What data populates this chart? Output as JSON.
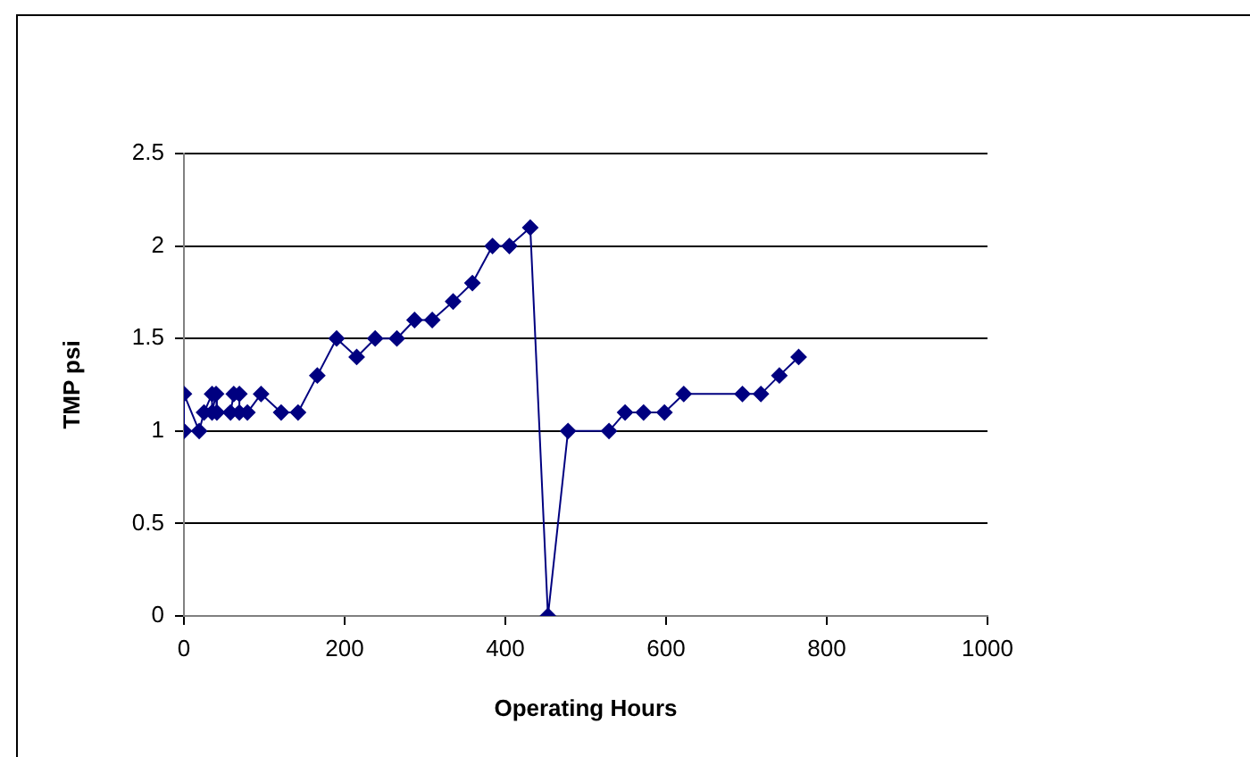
{
  "chart_data": {
    "type": "line",
    "xlabel": "Operating Hours",
    "ylabel": "TMP psi",
    "x": [
      0,
      0,
      19,
      25,
      35,
      35,
      40,
      41,
      58,
      62,
      69,
      69,
      79,
      96,
      121,
      142,
      166,
      190,
      215,
      238,
      265,
      287,
      309,
      335,
      359,
      384,
      405,
      431,
      453,
      478,
      529,
      549,
      572,
      598,
      622,
      695,
      718,
      741,
      765
    ],
    "series": [
      {
        "color": "#000080",
        "values": [
          1.0,
          1.2,
          1.0,
          1.1,
          1.2,
          1.1,
          1.2,
          1.1,
          1.1,
          1.2,
          1.2,
          1.1,
          1.1,
          1.2,
          1.1,
          1.1,
          1.3,
          1.5,
          1.4,
          1.5,
          1.5,
          1.6,
          1.6,
          1.7,
          1.8,
          2.0,
          2.0,
          2.1,
          0,
          1.0,
          1.0,
          1.1,
          1.1,
          1.1,
          1.2,
          1.2,
          1.2,
          1.3,
          1.4
        ]
      }
    ],
    "xlim": [
      0,
      1000
    ],
    "xticks": [
      0,
      200,
      400,
      600,
      800,
      1000
    ],
    "ylim": [
      0,
      2.5
    ],
    "yticks": [
      0,
      0.5,
      1,
      1.5,
      2,
      2.5
    ],
    "grid": "y",
    "marker": "diamond",
    "line_style": "solid",
    "legend": false
  }
}
